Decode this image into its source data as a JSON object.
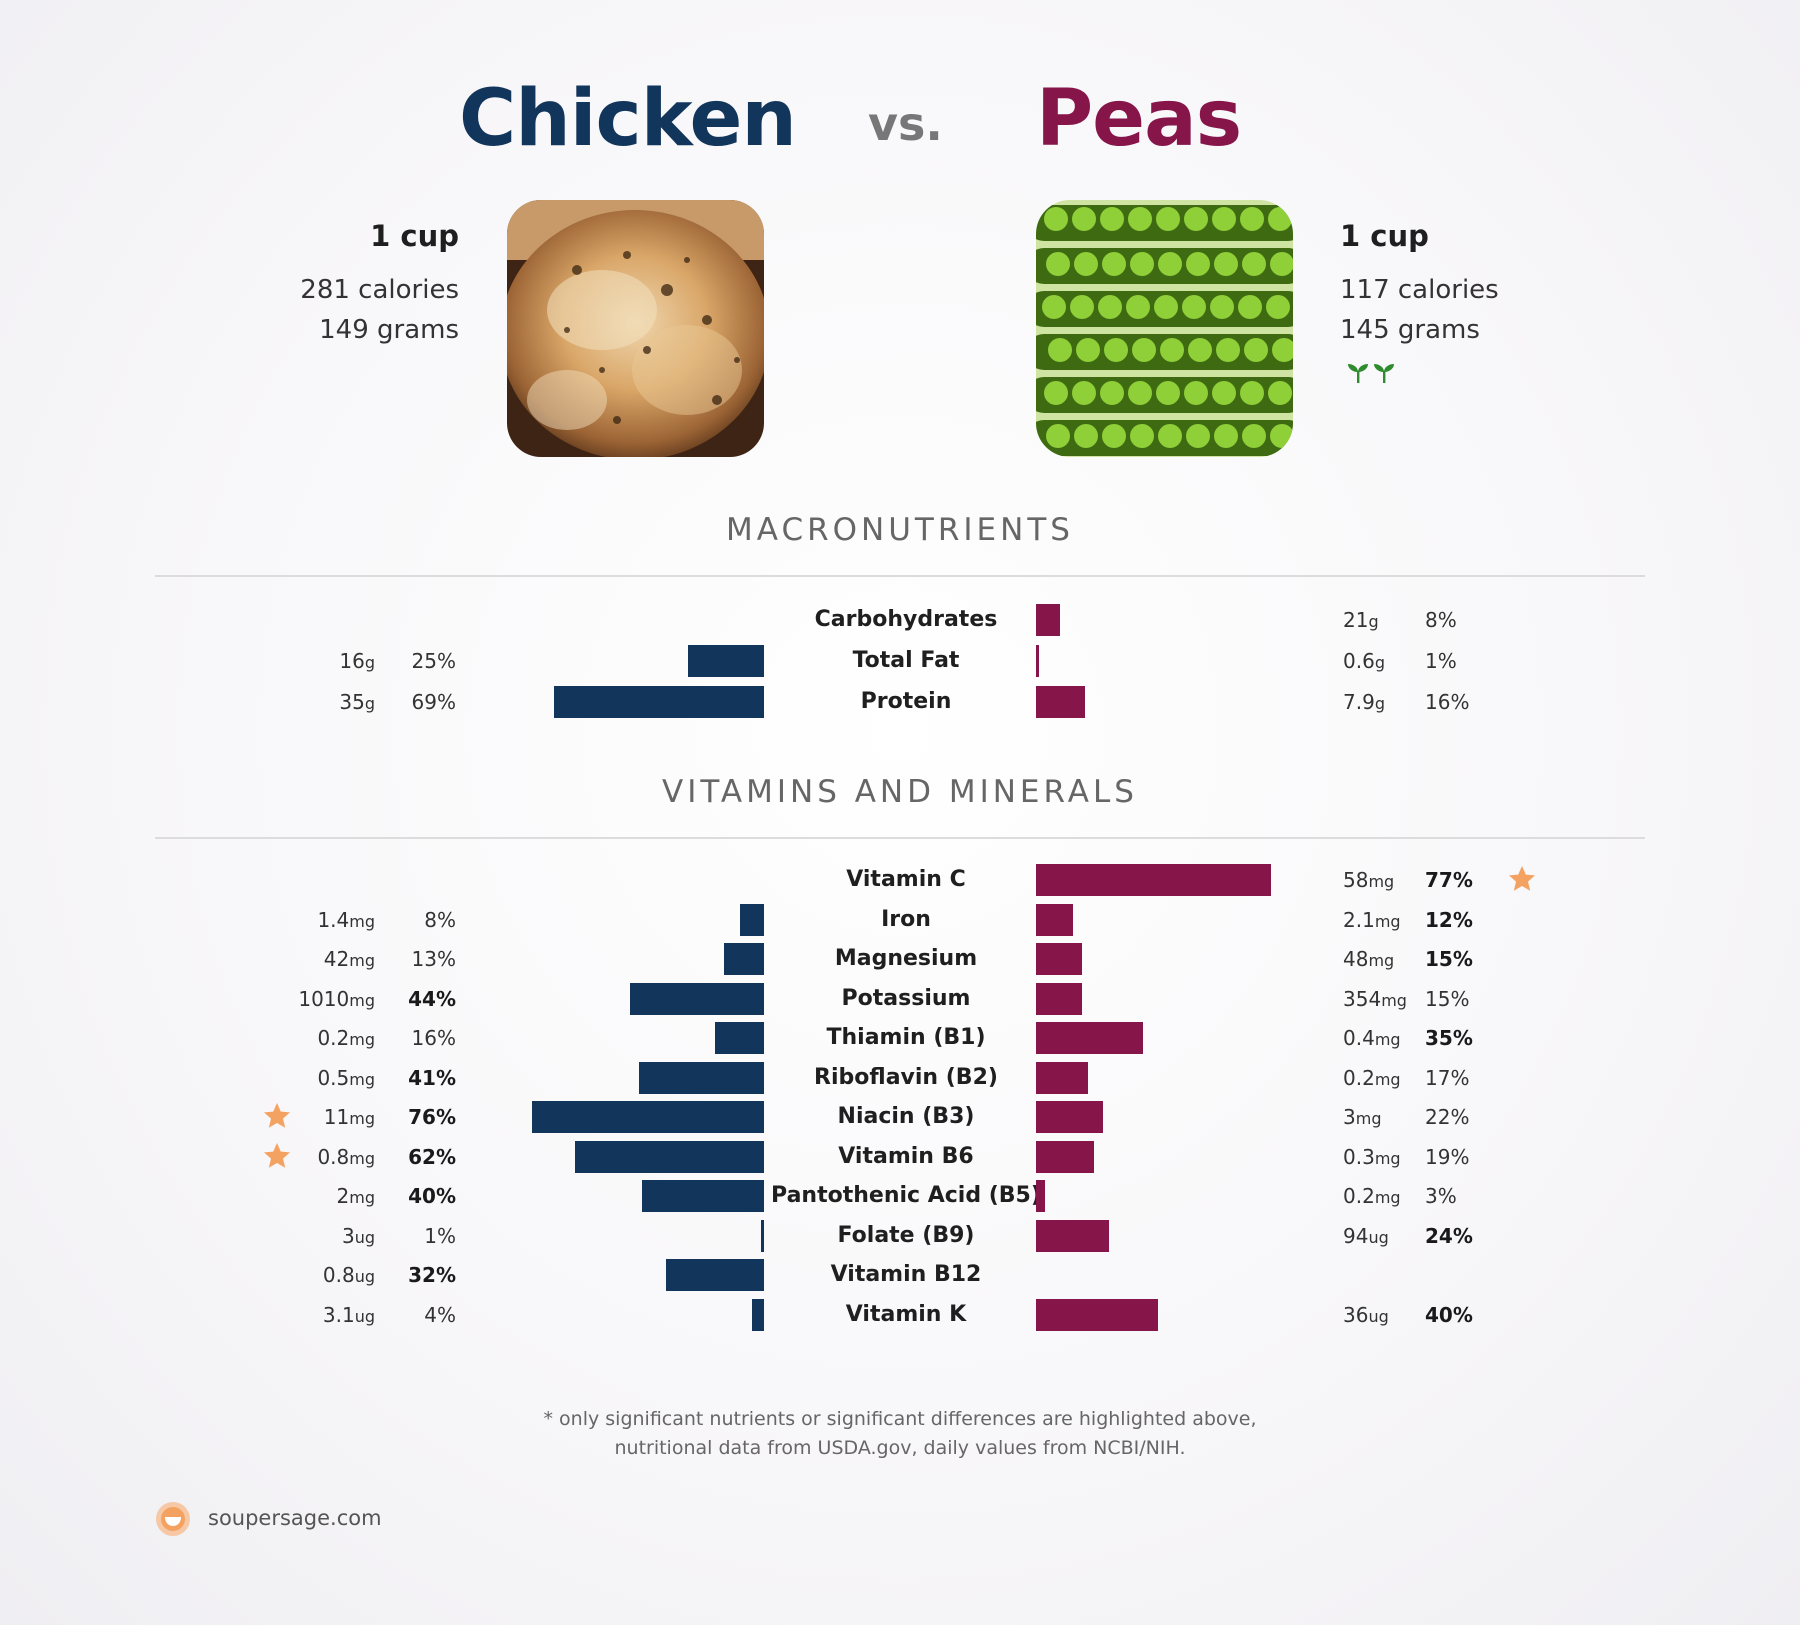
{
  "header": {
    "left_name": "Chicken",
    "vs": "vs.",
    "right_name": "Peas",
    "left_color": "#12355b",
    "right_color": "#86154a"
  },
  "left_food": {
    "serving": "1 cup",
    "calories": "281 calories",
    "grams": "149 grams",
    "image": "roast-chicken"
  },
  "right_food": {
    "serving": "1 cup",
    "calories": "117 calories",
    "grams": "145 grams",
    "image": "green-peas-in-pods",
    "badge_icon": "sprout-icon"
  },
  "sections": {
    "macros": "MACRONUTRIENTS",
    "vitamins": "VITAMINS AND MINERALS"
  },
  "chart_data": [
    {
      "type": "bar",
      "title": "MACRONUTRIENTS",
      "categories": [
        "Carbohydrates",
        "Total Fat",
        "Protein"
      ],
      "series": [
        {
          "name": "Chicken",
          "amounts": [
            "",
            "16",
            "35"
          ],
          "units": [
            "",
            "g",
            "g"
          ],
          "pct_labels": [
            "",
            "25%",
            "69%"
          ],
          "values": [
            null,
            25,
            69
          ],
          "bold": [
            false,
            false,
            false
          ],
          "star": [
            false,
            false,
            false
          ]
        },
        {
          "name": "Peas",
          "amounts": [
            "21",
            "0.6",
            "7.9"
          ],
          "units": [
            "g",
            "g",
            "g"
          ],
          "pct_labels": [
            "8%",
            "1%",
            "16%"
          ],
          "values": [
            8,
            1,
            16
          ],
          "bold": [
            false,
            false,
            false
          ],
          "star": [
            false,
            false,
            false
          ]
        }
      ]
    },
    {
      "type": "bar",
      "title": "VITAMINS AND MINERALS",
      "categories": [
        "Vitamin C",
        "Iron",
        "Magnesium",
        "Potassium",
        "Thiamin (B1)",
        "Riboflavin (B2)",
        "Niacin (B3)",
        "Vitamin B6",
        "Pantothenic Acid (B5)",
        "Folate (B9)",
        "Vitamin B12",
        "Vitamin K"
      ],
      "series": [
        {
          "name": "Chicken",
          "amounts": [
            "",
            "1.4",
            "42",
            "1010",
            "0.2",
            "0.5",
            "11",
            "0.8",
            "2",
            "3",
            "0.8",
            "3.1"
          ],
          "units": [
            "",
            "mg",
            "mg",
            "mg",
            "mg",
            "mg",
            "mg",
            "mg",
            "mg",
            "ug",
            "ug",
            "ug"
          ],
          "pct_labels": [
            "",
            "8%",
            "13%",
            "44%",
            "16%",
            "41%",
            "76%",
            "62%",
            "40%",
            "1%",
            "32%",
            "4%"
          ],
          "values": [
            null,
            8,
            13,
            44,
            16,
            41,
            76,
            62,
            40,
            1,
            32,
            4
          ],
          "bold": [
            false,
            false,
            false,
            true,
            false,
            true,
            true,
            true,
            true,
            false,
            true,
            false
          ],
          "star": [
            false,
            false,
            false,
            false,
            false,
            false,
            true,
            true,
            false,
            false,
            false,
            false
          ]
        },
        {
          "name": "Peas",
          "amounts": [
            "58",
            "2.1",
            "48",
            "354",
            "0.4",
            "0.2",
            "3",
            "0.3",
            "0.2",
            "94",
            "",
            "36"
          ],
          "units": [
            "mg",
            "mg",
            "mg",
            "mg",
            "mg",
            "mg",
            "mg",
            "mg",
            "mg",
            "ug",
            "",
            "ug"
          ],
          "pct_labels": [
            "77%",
            "12%",
            "15%",
            "15%",
            "35%",
            "17%",
            "22%",
            "19%",
            "3%",
            "24%",
            "",
            "40%"
          ],
          "values": [
            77,
            12,
            15,
            15,
            35,
            17,
            22,
            19,
            3,
            24,
            null,
            40
          ],
          "bold": [
            true,
            true,
            true,
            false,
            true,
            false,
            false,
            false,
            false,
            true,
            false,
            true
          ],
          "star": [
            true,
            false,
            false,
            false,
            false,
            false,
            false,
            false,
            false,
            false,
            false,
            false
          ]
        }
      ]
    }
  ],
  "footnote": {
    "line1": "* only significant nutrients or significant differences are highlighted above,",
    "line2": "nutritional data from USDA.gov, daily values from NCBI/NIH."
  },
  "brand": {
    "text": "soupersage.com",
    "icon": "soupersage-logo-icon",
    "color": "#f4a261"
  },
  "star_color": "#f4a261"
}
